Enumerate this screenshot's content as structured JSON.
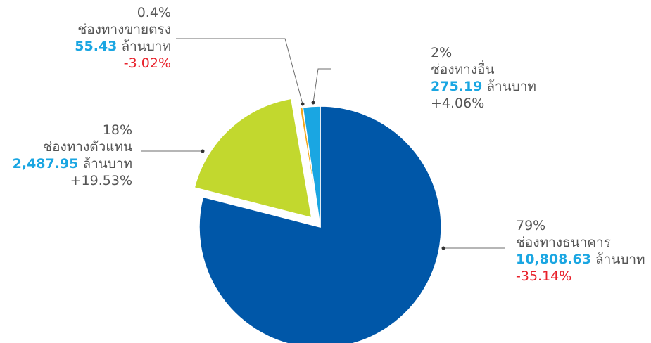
{
  "chart_data": {
    "type": "pie",
    "slices": [
      {
        "percent": "79%",
        "name": "ช่องทางธนาคาร",
        "value": 10808.63,
        "amount": "10,808.63",
        "unit": "ล้านบาท",
        "change": "-35.14%",
        "share": 79.0,
        "color": "#0057a8",
        "exploded": false
      },
      {
        "percent": "18%",
        "name": "ช่องทางตัวแทน",
        "value": 2487.95,
        "amount": "2,487.95",
        "unit": "ล้านบาท",
        "change": "+19.53%",
        "share": 18.3,
        "color": "#c2d82e",
        "exploded": true
      },
      {
        "percent": "0.4%",
        "name": "ช่องทางขายตรง",
        "value": 55.43,
        "amount": "55.43",
        "unit": "ล้านบาท",
        "change": "-3.02%",
        "share": 0.4,
        "color": "#f2a71b",
        "exploded": false
      },
      {
        "percent": "2%",
        "name": "ช่องทางอื่น",
        "value": 275.19,
        "amount": "275.19",
        "unit": "ล้านบาท",
        "change": "+4.06%",
        "share": 2.3,
        "color": "#1aa6e2",
        "exploded": false
      }
    ]
  }
}
